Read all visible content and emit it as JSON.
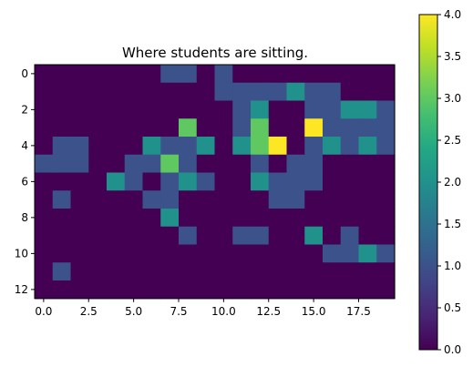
{
  "chart_data": {
    "type": "heatmap",
    "title": "Where students are sitting.",
    "xlabel": "",
    "ylabel": "",
    "rows": 13,
    "cols": 20,
    "x_ticks": [
      0,
      2.5,
      5,
      7.5,
      10,
      12.5,
      15,
      17.5
    ],
    "x_tick_labels": [
      "0.0",
      "2.5",
      "5.0",
      "7.5",
      "10.0",
      "12.5",
      "15.0",
      "17.5"
    ],
    "y_ticks": [
      0,
      2,
      4,
      6,
      8,
      10,
      12
    ],
    "y_tick_labels": [
      "0",
      "2",
      "4",
      "6",
      "8",
      "10",
      "12"
    ],
    "colorbar": {
      "vmin": 0,
      "vmax": 4,
      "ticks": [
        0,
        0.5,
        1,
        1.5,
        2,
        2.5,
        3,
        3.5,
        4
      ],
      "tick_labels": [
        "0.0",
        "0.5",
        "1.0",
        "1.5",
        "2.0",
        "2.5",
        "3.0",
        "3.5",
        "4.0"
      ]
    },
    "colormap": "viridis",
    "values": [
      [
        0,
        0,
        0,
        0,
        0,
        0,
        0,
        1,
        1,
        0,
        1,
        0,
        0,
        0,
        0,
        0,
        0,
        0,
        0,
        0
      ],
      [
        0,
        0,
        0,
        0,
        0,
        0,
        0,
        0,
        0,
        0,
        1,
        1,
        1,
        1,
        2,
        1,
        1,
        0,
        0,
        0
      ],
      [
        0,
        0,
        0,
        0,
        0,
        0,
        0,
        0,
        0,
        0,
        0,
        1,
        2,
        0,
        0,
        1,
        1,
        2,
        2,
        1
      ],
      [
        0,
        0,
        0,
        0,
        0,
        0,
        0,
        0,
        3,
        0,
        0,
        1,
        3,
        0,
        0,
        4,
        1,
        1,
        1,
        1
      ],
      [
        0,
        1,
        1,
        0,
        0,
        0,
        2,
        1,
        1,
        2,
        0,
        2,
        3,
        4,
        0,
        1,
        2,
        1,
        2,
        1
      ],
      [
        1,
        1,
        1,
        0,
        0,
        1,
        1,
        3,
        1,
        0,
        0,
        0,
        1,
        0,
        1,
        1,
        0,
        0,
        0,
        0
      ],
      [
        0,
        0,
        0,
        0,
        2,
        1,
        0,
        1,
        2,
        1,
        0,
        0,
        2,
        1,
        1,
        1,
        0,
        0,
        0,
        0
      ],
      [
        0,
        1,
        0,
        0,
        0,
        0,
        1,
        1,
        0,
        0,
        0,
        0,
        0,
        1,
        1,
        0,
        0,
        0,
        0,
        0
      ],
      [
        0,
        0,
        0,
        0,
        0,
        0,
        0,
        2,
        0,
        0,
        0,
        0,
        0,
        0,
        0,
        0,
        0,
        0,
        0,
        0
      ],
      [
        0,
        0,
        0,
        0,
        0,
        0,
        0,
        0,
        1,
        0,
        0,
        1,
        1,
        0,
        0,
        2,
        0,
        1,
        0,
        0
      ],
      [
        0,
        0,
        0,
        0,
        0,
        0,
        0,
        0,
        0,
        0,
        0,
        0,
        0,
        0,
        0,
        0,
        1,
        1,
        2,
        1
      ],
      [
        0,
        1,
        0,
        0,
        0,
        0,
        0,
        0,
        0,
        0,
        0,
        0,
        0,
        0,
        0,
        0,
        0,
        0,
        0,
        0
      ],
      [
        0,
        0,
        0,
        0,
        0,
        0,
        0,
        0,
        0,
        0,
        0,
        0,
        0,
        0,
        0,
        0,
        0,
        0,
        0,
        0
      ]
    ]
  }
}
